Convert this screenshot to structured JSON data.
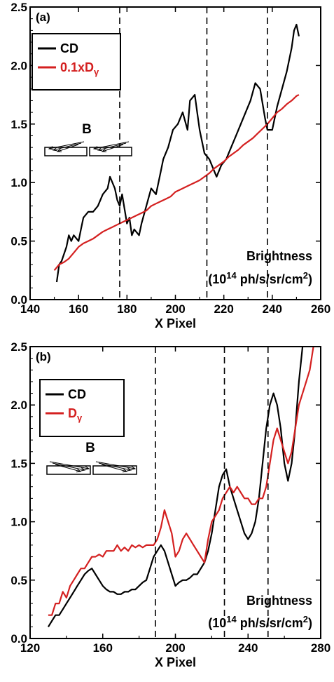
{
  "chart_data": [
    {
      "type": "line",
      "panel_label": "(a)",
      "xlabel": "X Pixel",
      "ylabel": "",
      "xlim": [
        140,
        260
      ],
      "ylim": [
        0.0,
        2.5
      ],
      "xticks": [
        "140",
        "160",
        "180",
        "200",
        "220",
        "240",
        "260"
      ],
      "yticks": [
        "0.0",
        "0.5",
        "1.0",
        "1.5",
        "2.0",
        "2.5"
      ],
      "grid": false,
      "legend_position": "top-left",
      "annotation": {
        "line1": "Brightness",
        "line2_pre": "(10",
        "line2_sup1": "14",
        "line2_mid": " ph/s/sr/cm",
        "line2_sup2": "2",
        "line2_post": ")"
      },
      "b_label": "B",
      "b_arrow_direction": "left",
      "vlines": [
        177,
        213,
        238
      ],
      "series": [
        {
          "name": "CD",
          "name_main": "CD",
          "name_sub": "",
          "color": "#000000",
          "x": [
            151,
            152,
            153,
            155,
            156,
            157,
            158,
            160,
            161,
            162,
            164,
            166,
            168,
            170,
            172,
            173,
            175,
            176,
            177,
            178,
            180,
            181,
            182,
            183,
            185,
            186,
            188,
            190,
            192,
            194,
            195,
            197,
            199,
            201,
            203,
            205,
            206,
            208,
            209,
            210,
            212,
            214,
            215,
            217,
            219,
            221,
            223,
            225,
            227,
            229,
            231,
            233,
            235,
            237,
            238,
            240,
            242,
            244,
            246,
            248,
            249,
            250,
            251
          ],
          "y": [
            0.15,
            0.3,
            0.33,
            0.45,
            0.55,
            0.5,
            0.55,
            0.5,
            0.6,
            0.7,
            0.75,
            0.75,
            0.8,
            0.9,
            0.95,
            1.05,
            0.95,
            0.85,
            0.8,
            0.9,
            0.65,
            0.7,
            0.55,
            0.6,
            0.55,
            0.65,
            0.8,
            0.95,
            0.9,
            1.1,
            1.2,
            1.3,
            1.45,
            1.5,
            1.6,
            1.45,
            1.7,
            1.75,
            1.6,
            1.45,
            1.25,
            1.2,
            1.15,
            1.05,
            1.15,
            1.2,
            1.3,
            1.4,
            1.5,
            1.6,
            1.7,
            1.85,
            1.8,
            1.55,
            1.45,
            1.45,
            1.65,
            1.8,
            1.95,
            2.15,
            2.3,
            2.35,
            2.25
          ]
        },
        {
          "name": "0.1xDγ",
          "name_main": "0.1xD",
          "name_sub": "γ",
          "color": "#d42020",
          "x": [
            150,
            152,
            154,
            156,
            158,
            160,
            162,
            164,
            166,
            168,
            170,
            172,
            174,
            176,
            178,
            180,
            182,
            184,
            186,
            188,
            190,
            192,
            194,
            196,
            198,
            200,
            202,
            204,
            206,
            208,
            210,
            212,
            214,
            216,
            218,
            220,
            222,
            224,
            226,
            228,
            230,
            232,
            234,
            236,
            238,
            240,
            242,
            244,
            246,
            248,
            250,
            251
          ],
          "y": [
            0.25,
            0.3,
            0.32,
            0.35,
            0.4,
            0.45,
            0.48,
            0.5,
            0.52,
            0.55,
            0.58,
            0.6,
            0.62,
            0.64,
            0.66,
            0.68,
            0.7,
            0.72,
            0.74,
            0.76,
            0.8,
            0.82,
            0.84,
            0.86,
            0.88,
            0.92,
            0.94,
            0.96,
            0.98,
            1.0,
            1.02,
            1.05,
            1.08,
            1.12,
            1.15,
            1.18,
            1.22,
            1.25,
            1.28,
            1.32,
            1.35,
            1.38,
            1.42,
            1.46,
            1.5,
            1.55,
            1.6,
            1.63,
            1.67,
            1.7,
            1.74,
            1.75
          ]
        }
      ]
    },
    {
      "type": "line",
      "panel_label": "(b)",
      "xlabel": "X Pixel",
      "ylabel": "",
      "xlim": [
        120,
        280
      ],
      "ylim": [
        0.0,
        2.5
      ],
      "xticks": [
        "120",
        "160",
        "200",
        "240",
        "280"
      ],
      "yticks": [
        "0.0",
        "0.5",
        "1.0",
        "1.5",
        "2.0",
        "2.5"
      ],
      "grid": false,
      "legend_position": "top-left",
      "annotation": {
        "line1": "Brightness",
        "line2_pre": "(10",
        "line2_sup1": "14",
        "line2_mid": " ph/s/sr/cm",
        "line2_sup2": "2",
        "line2_post": ")"
      },
      "b_label": "B",
      "b_arrow_direction": "right",
      "vlines": [
        189,
        227,
        251
      ],
      "series": [
        {
          "name": "CD",
          "name_main": "CD",
          "name_sub": "",
          "color": "#000000",
          "x": [
            130,
            132,
            134,
            136,
            138,
            140,
            142,
            144,
            146,
            148,
            150,
            152,
            154,
            156,
            158,
            160,
            162,
            164,
            166,
            168,
            170,
            172,
            174,
            176,
            178,
            180,
            182,
            184,
            186,
            188,
            190,
            192,
            194,
            196,
            198,
            200,
            202,
            204,
            206,
            208,
            210,
            212,
            214,
            216,
            218,
            220,
            222,
            224,
            226,
            228,
            230,
            232,
            234,
            236,
            238,
            240,
            242,
            244,
            246,
            248,
            250,
            252,
            254,
            256,
            258,
            260,
            262,
            264,
            266,
            268,
            270,
            272,
            275
          ],
          "y": [
            0.1,
            0.15,
            0.2,
            0.2,
            0.25,
            0.3,
            0.35,
            0.4,
            0.45,
            0.5,
            0.55,
            0.58,
            0.6,
            0.55,
            0.5,
            0.45,
            0.42,
            0.4,
            0.4,
            0.38,
            0.38,
            0.4,
            0.4,
            0.42,
            0.42,
            0.45,
            0.48,
            0.5,
            0.6,
            0.7,
            0.75,
            0.8,
            0.75,
            0.65,
            0.55,
            0.45,
            0.48,
            0.5,
            0.5,
            0.52,
            0.55,
            0.55,
            0.6,
            0.65,
            0.75,
            0.9,
            1.1,
            1.3,
            1.4,
            1.45,
            1.3,
            1.2,
            1.1,
            1.0,
            0.9,
            0.85,
            0.9,
            1.0,
            1.2,
            1.5,
            1.8,
            2.0,
            2.1,
            2.0,
            1.8,
            1.5,
            1.35,
            1.5,
            1.8,
            2.2,
            2.5,
            2.6,
            2.6
          ]
        },
        {
          "name": "Dγ",
          "name_main": "D",
          "name_sub": "γ",
          "color": "#d42020",
          "x": [
            130,
            132,
            134,
            136,
            138,
            140,
            142,
            144,
            146,
            148,
            150,
            152,
            154,
            156,
            158,
            160,
            162,
            164,
            166,
            168,
            170,
            172,
            174,
            176,
            178,
            180,
            182,
            184,
            186,
            188,
            190,
            192,
            194,
            196,
            198,
            200,
            202,
            204,
            206,
            208,
            210,
            212,
            214,
            216,
            218,
            220,
            222,
            224,
            226,
            228,
            230,
            232,
            234,
            236,
            238,
            240,
            242,
            244,
            246,
            248,
            250,
            252,
            254,
            256,
            258,
            260,
            262,
            264,
            266,
            268,
            270,
            272,
            274,
            276
          ],
          "y": [
            0.2,
            0.2,
            0.3,
            0.3,
            0.4,
            0.35,
            0.45,
            0.5,
            0.55,
            0.6,
            0.6,
            0.65,
            0.7,
            0.7,
            0.72,
            0.7,
            0.75,
            0.75,
            0.75,
            0.8,
            0.75,
            0.78,
            0.75,
            0.8,
            0.78,
            0.8,
            0.78,
            0.8,
            0.8,
            0.8,
            0.85,
            0.95,
            1.1,
            1.0,
            0.9,
            0.7,
            0.75,
            0.85,
            0.9,
            0.85,
            0.8,
            0.75,
            0.7,
            0.65,
            0.85,
            1.0,
            1.05,
            1.1,
            1.2,
            1.25,
            1.3,
            1.25,
            1.3,
            1.25,
            1.2,
            1.2,
            1.15,
            1.15,
            1.2,
            1.2,
            1.3,
            1.5,
            1.7,
            1.8,
            1.7,
            1.6,
            1.5,
            1.6,
            1.8,
            2.0,
            2.1,
            2.2,
            2.3,
            2.5
          ]
        }
      ]
    }
  ]
}
